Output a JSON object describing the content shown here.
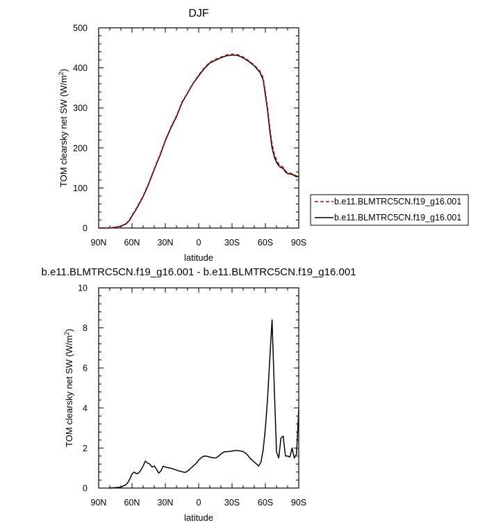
{
  "chart_data": [
    {
      "type": "line",
      "title": "DJF",
      "xlabel": "latitude",
      "ylabel": "TOM clearsky net SW (W/m",
      "ylabel_sup": "2",
      "ylabel_end": ")",
      "xlim": [
        -90,
        90
      ],
      "ylim": [
        0,
        500
      ],
      "x_tick_values": [
        -90,
        -60,
        -30,
        0,
        30,
        60,
        90
      ],
      "x_tick_labels": [
        "90N",
        "60N",
        "30N",
        "0",
        "30S",
        "60S",
        "90S"
      ],
      "y_ticks": [
        0,
        100,
        200,
        300,
        400,
        500
      ],
      "legend_position": "right",
      "series": [
        {
          "name": "b.e11.BLMTRC5CN.f19_g16.001",
          "color": "#cc0000",
          "dash": "dashed",
          "x": [
            -90,
            -85,
            -80,
            -75,
            -70,
            -65,
            -62,
            -60,
            -57,
            -54,
            -50,
            -45,
            -40,
            -35,
            -30,
            -25,
            -20,
            -15,
            -10,
            -5,
            0,
            5,
            10,
            15,
            20,
            25,
            30,
            35,
            40,
            45,
            50,
            55,
            58,
            60,
            62,
            64,
            66,
            68,
            70,
            72,
            74,
            76,
            78,
            80,
            82,
            84,
            86,
            88,
            90
          ],
          "y": [
            0,
            0,
            0.5,
            2,
            5,
            12,
            22,
            32,
            45,
            60,
            80,
            112,
            148,
            182,
            220,
            252,
            280,
            315,
            338,
            362,
            382,
            400,
            414,
            421,
            427,
            432,
            434,
            433,
            427,
            418,
            407,
            392,
            375,
            340,
            300,
            250,
            210,
            185,
            170,
            160,
            155,
            152,
            143,
            138,
            137,
            136,
            133,
            130,
            130
          ]
        },
        {
          "name": "b.e11.BLMTRC5CN.f19_g16.001",
          "color": "#000000",
          "dash": "solid",
          "x": [
            -90,
            -85,
            -80,
            -75,
            -70,
            -65,
            -62,
            -60,
            -57,
            -54,
            -50,
            -45,
            -40,
            -35,
            -30,
            -25,
            -20,
            -15,
            -10,
            -5,
            0,
            5,
            10,
            15,
            20,
            25,
            30,
            35,
            40,
            45,
            50,
            55,
            58,
            60,
            62,
            64,
            66,
            68,
            70,
            72,
            74,
            76,
            78,
            80,
            82,
            84,
            86,
            88,
            90
          ],
          "y": [
            0,
            0,
            0.5,
            2,
            4.5,
            11,
            20,
            30,
            43,
            58,
            78,
            110,
            146,
            180,
            218,
            250,
            278,
            313,
            337,
            361,
            380,
            398,
            412,
            419,
            425,
            430,
            432,
            431,
            425,
            416,
            405,
            389,
            370,
            332,
            292,
            242,
            200,
            178,
            164,
            156,
            151,
            149,
            140,
            136,
            135,
            134,
            131,
            128,
            128
          ]
        }
      ]
    },
    {
      "type": "line",
      "title": "b.e11.BLMTRC5CN.f19_g16.001 - b.e11.BLMTRC5CN.f19_g16.001",
      "xlabel": "latitude",
      "ylabel": "TOM clearsky net SW (W/m",
      "ylabel_sup": "2",
      "ylabel_end": ")",
      "xlim": [
        -90,
        90
      ],
      "ylim": [
        0,
        10
      ],
      "x_tick_values": [
        -90,
        -60,
        -30,
        0,
        30,
        60,
        90
      ],
      "x_tick_labels": [
        "90N",
        "60N",
        "30N",
        "0",
        "30S",
        "60S",
        "90S"
      ],
      "y_ticks": [
        0,
        2,
        4,
        6,
        8,
        10
      ],
      "series": [
        {
          "color": "#000000",
          "dash": "solid",
          "x": [
            -80,
            -75,
            -70,
            -68,
            -66,
            -64,
            -62,
            -60,
            -58,
            -56,
            -54,
            -52,
            -50,
            -48,
            -46,
            -44,
            -42,
            -40,
            -38,
            -36,
            -34,
            -32,
            -30,
            -28,
            -26,
            -24,
            -22,
            -20,
            -18,
            -16,
            -14,
            -12,
            -10,
            -8,
            -6,
            -4,
            -2,
            0,
            2,
            4,
            6,
            8,
            10,
            12,
            14,
            16,
            18,
            20,
            22,
            24,
            26,
            28,
            30,
            32,
            34,
            36,
            38,
            40,
            42,
            44,
            46,
            48,
            50,
            52,
            54,
            56,
            58,
            60,
            62,
            64,
            66,
            68,
            70,
            72,
            74,
            76,
            78,
            80,
            82,
            84,
            86,
            88,
            90
          ],
          "y": [
            0,
            0.02,
            0.05,
            0.1,
            0.15,
            0.25,
            0.45,
            0.7,
            0.8,
            0.72,
            0.75,
            0.9,
            1.1,
            1.35,
            1.25,
            1.2,
            1.05,
            1.1,
            0.95,
            0.75,
            0.85,
            1.1,
            1.05,
            1.02,
            1.0,
            0.98,
            0.93,
            0.9,
            0.86,
            0.83,
            0.8,
            0.78,
            0.85,
            0.95,
            1.05,
            1.15,
            1.25,
            1.4,
            1.5,
            1.58,
            1.6,
            1.58,
            1.55,
            1.52,
            1.5,
            1.52,
            1.6,
            1.7,
            1.78,
            1.82,
            1.82,
            1.83,
            1.85,
            1.86,
            1.88,
            1.86,
            1.85,
            1.82,
            1.75,
            1.65,
            1.5,
            1.4,
            1.3,
            1.2,
            1.1,
            1.3,
            1.9,
            3.0,
            4.5,
            6.5,
            8.4,
            5.0,
            1.8,
            1.5,
            2.5,
            2.6,
            1.6,
            1.6,
            1.55,
            2.0,
            1.5,
            1.7,
            3.9
          ]
        }
      ]
    }
  ]
}
